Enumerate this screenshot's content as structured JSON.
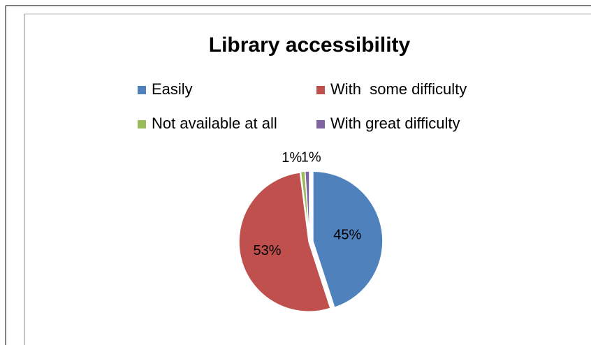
{
  "chart_data": {
    "type": "pie",
    "title": "Library accessibility",
    "categories": [
      "Easily",
      "With  some difficulty",
      "Not available at all",
      "With great difficulty"
    ],
    "values": [
      45,
      53,
      1,
      1
    ],
    "value_labels": [
      "45%",
      "53%",
      "1%",
      "1%"
    ],
    "colors": [
      "#4f81bd",
      "#c0504d",
      "#9bbb59",
      "#8064a2"
    ],
    "legend": "top"
  }
}
